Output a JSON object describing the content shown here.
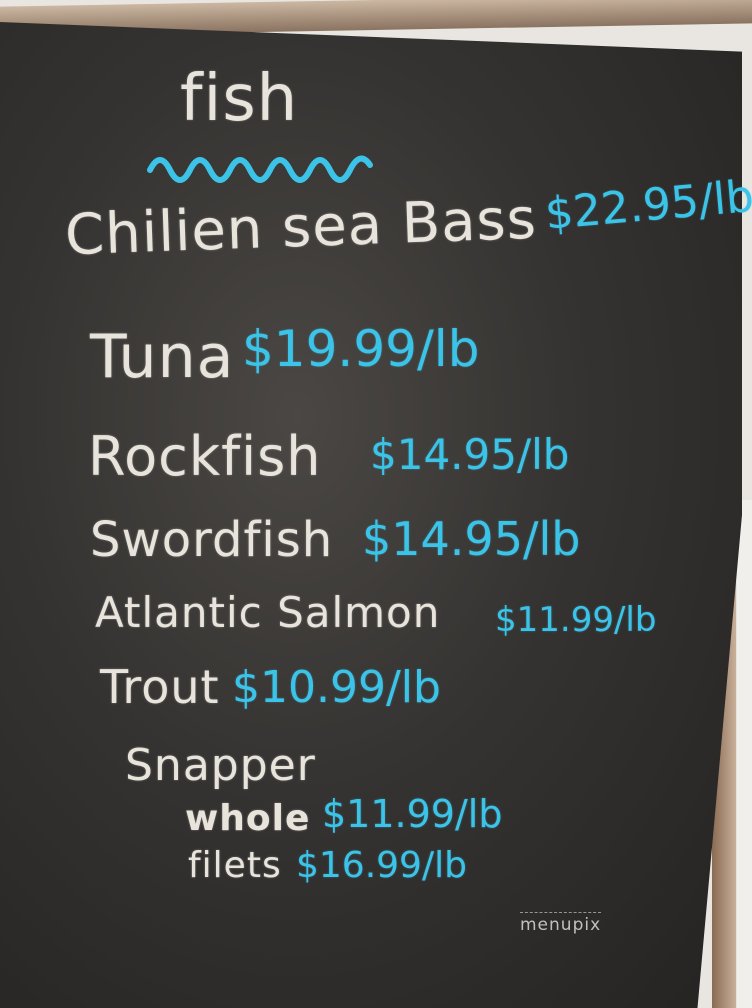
{
  "heading": "fish",
  "items": [
    {
      "name": "Chilien sea Bass",
      "price": "$22.95/lb"
    },
    {
      "name": "Tuna",
      "price": "$19.99/lb"
    },
    {
      "name": "Rockfish",
      "price": "$14.95/lb"
    },
    {
      "name": "Swordfish",
      "price": "$14.95/lb"
    },
    {
      "name": "Atlantic Salmon",
      "price": "$11.99/lb"
    },
    {
      "name": "Trout",
      "price": "$10.99/lb"
    }
  ],
  "snapper": {
    "name": "Snapper",
    "variants": [
      {
        "name": "whole",
        "price": "$11.99/lb"
      },
      {
        "name": "filets",
        "price": "$16.99/lb"
      }
    ]
  },
  "watermark": "menupix",
  "colors": {
    "chalk_white": "#e8e4dc",
    "chalk_blue": "#3cc3e8",
    "board": "#353331"
  }
}
